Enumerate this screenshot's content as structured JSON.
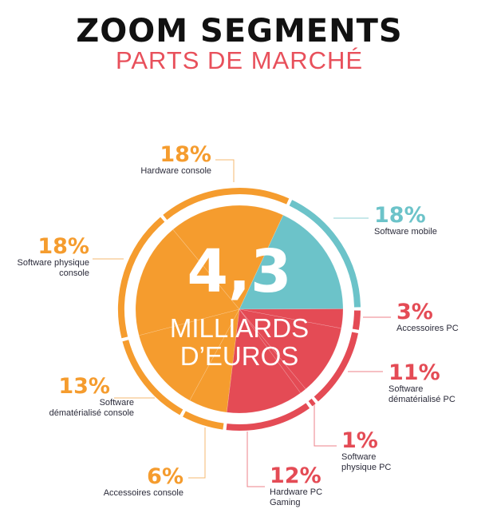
{
  "title": "ZOOM SEGMENTS",
  "subtitle": "PARTS DE MARCHÉ",
  "center": {
    "value": "4,3",
    "line1": "MILLIARDS",
    "line2": "D’EUROS"
  },
  "colors": {
    "console": "#f59c2e",
    "mobile": "#6cc3c9",
    "pc": "#e44b55"
  },
  "chart_data": {
    "type": "pie",
    "start_angle_deg": 25,
    "direction": "clockwise",
    "slices": [
      {
        "label": "Software mobile",
        "value": 18,
        "pct": "18%",
        "group": "mobile"
      },
      {
        "label": "Accessoires PC",
        "value": 3,
        "pct": "3%",
        "group": "pc"
      },
      {
        "label": "Software dématérialisé PC",
        "value": 11,
        "pct": "11%",
        "group": "pc"
      },
      {
        "label": "Software physique PC",
        "value": 1,
        "pct": "1%",
        "group": "pc"
      },
      {
        "label": "Hardware PC Gaming",
        "value": 12,
        "pct": "12%",
        "group": "pc"
      },
      {
        "label": "Accessoires console",
        "value": 6,
        "pct": "6%",
        "group": "console"
      },
      {
        "label": "Software dématérialisé console",
        "value": 13,
        "pct": "13%",
        "group": "console"
      },
      {
        "label": "Software physique console",
        "value": 18,
        "pct": "18%",
        "group": "console"
      },
      {
        "label": "Hardware console",
        "value": 18,
        "pct": "18%",
        "group": "console"
      }
    ]
  }
}
